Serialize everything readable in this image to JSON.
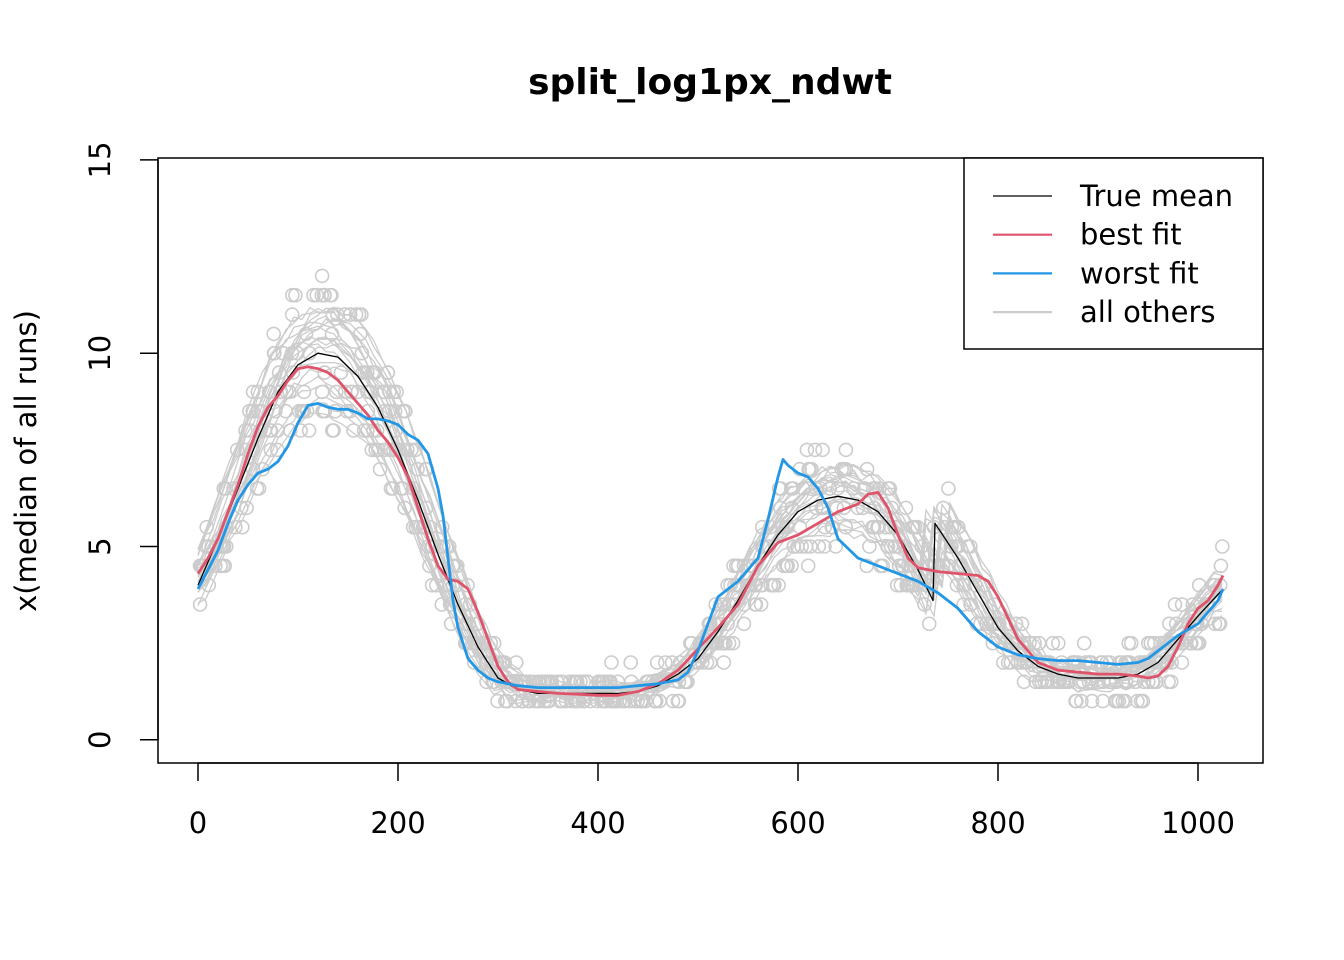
{
  "chart_data": {
    "type": "line",
    "title": "split_log1px_ndwt",
    "xlabel": "",
    "ylabel": "x(median of all runs)",
    "xlim": [
      -40,
      1065
    ],
    "ylim": [
      -0.6,
      15.05
    ],
    "x_ticks": [
      0,
      200,
      400,
      600,
      800,
      1000
    ],
    "y_ticks": [
      0,
      5,
      10,
      15
    ],
    "legend": {
      "position": "top-right",
      "entries": [
        {
          "label": "True mean",
          "color": "#000000"
        },
        {
          "label": "best fit",
          "color": "#DF536B"
        },
        {
          "label": "worst fit",
          "color": "#2297E6"
        },
        {
          "label": "all others",
          "color": "#CCCCCC"
        }
      ]
    },
    "series": [
      {
        "name": "True mean",
        "color": "#000000",
        "x": [
          0,
          20,
          40,
          60,
          80,
          100,
          120,
          140,
          160,
          180,
          200,
          220,
          240,
          260,
          280,
          300,
          320,
          340,
          360,
          380,
          400,
          420,
          440,
          460,
          480,
          500,
          520,
          540,
          560,
          580,
          600,
          620,
          640,
          660,
          680,
          700,
          720,
          735,
          737,
          760,
          780,
          800,
          820,
          840,
          860,
          880,
          900,
          920,
          940,
          960,
          980,
          1000,
          1025
        ],
        "y": [
          4.0,
          5.2,
          6.5,
          7.8,
          9.0,
          9.7,
          10.0,
          9.9,
          9.4,
          8.6,
          7.5,
          6.2,
          4.8,
          3.5,
          2.4,
          1.6,
          1.3,
          1.2,
          1.2,
          1.2,
          1.2,
          1.2,
          1.25,
          1.4,
          1.7,
          2.1,
          2.8,
          3.6,
          4.5,
          5.3,
          5.9,
          6.2,
          6.3,
          6.2,
          5.9,
          5.3,
          4.4,
          3.6,
          5.6,
          4.7,
          3.8,
          2.9,
          2.3,
          1.9,
          1.7,
          1.6,
          1.6,
          1.6,
          1.7,
          2.0,
          2.6,
          3.2,
          3.9
        ]
      },
      {
        "name": "best fit",
        "color": "#DF536B",
        "x": [
          0,
          10,
          20,
          30,
          40,
          50,
          60,
          70,
          80,
          90,
          100,
          110,
          120,
          130,
          140,
          150,
          160,
          170,
          180,
          190,
          200,
          210,
          220,
          230,
          240,
          250,
          260,
          270,
          280,
          290,
          300,
          310,
          320,
          340,
          360,
          380,
          400,
          420,
          440,
          460,
          480,
          500,
          520,
          540,
          560,
          580,
          600,
          620,
          640,
          660,
          670,
          680,
          690,
          700,
          710,
          720,
          740,
          760,
          780,
          790,
          800,
          820,
          840,
          860,
          880,
          900,
          920,
          940,
          950,
          960,
          970,
          980,
          990,
          1000,
          1010,
          1020,
          1025
        ],
        "y": [
          4.3,
          4.7,
          5.2,
          5.9,
          6.6,
          7.4,
          8.1,
          8.6,
          8.9,
          9.3,
          9.6,
          9.65,
          9.6,
          9.5,
          9.3,
          9.0,
          8.7,
          8.4,
          8.0,
          7.7,
          7.3,
          6.8,
          6.0,
          5.2,
          4.5,
          4.15,
          4.1,
          3.9,
          3.3,
          2.6,
          1.9,
          1.5,
          1.3,
          1.25,
          1.2,
          1.18,
          1.15,
          1.15,
          1.25,
          1.45,
          1.8,
          2.35,
          2.9,
          3.5,
          4.5,
          5.1,
          5.3,
          5.6,
          5.9,
          6.1,
          6.35,
          6.4,
          6.0,
          5.3,
          4.7,
          4.45,
          4.35,
          4.3,
          4.25,
          4.1,
          3.7,
          2.6,
          2.0,
          1.8,
          1.75,
          1.7,
          1.7,
          1.65,
          1.6,
          1.65,
          1.9,
          2.4,
          3.0,
          3.4,
          3.6,
          4.0,
          4.25
        ]
      },
      {
        "name": "worst fit",
        "color": "#2297E6",
        "x": [
          0,
          10,
          20,
          30,
          40,
          50,
          60,
          70,
          80,
          90,
          100,
          110,
          120,
          130,
          140,
          150,
          160,
          170,
          180,
          190,
          200,
          210,
          220,
          230,
          240,
          245,
          250,
          255,
          260,
          270,
          280,
          290,
          300,
          320,
          340,
          360,
          380,
          400,
          420,
          440,
          460,
          480,
          490,
          500,
          510,
          520,
          540,
          560,
          570,
          580,
          585,
          590,
          600,
          610,
          620,
          630,
          640,
          660,
          680,
          700,
          720,
          740,
          760,
          780,
          800,
          820,
          840,
          860,
          880,
          900,
          920,
          940,
          950,
          960,
          970,
          980,
          1000,
          1010,
          1020,
          1025
        ],
        "y": [
          3.9,
          4.4,
          4.9,
          5.6,
          6.2,
          6.6,
          6.9,
          7.0,
          7.2,
          7.6,
          8.2,
          8.65,
          8.7,
          8.6,
          8.55,
          8.55,
          8.45,
          8.3,
          8.3,
          8.25,
          8.15,
          7.9,
          7.75,
          7.4,
          6.5,
          5.8,
          4.7,
          3.6,
          2.9,
          2.1,
          1.8,
          1.6,
          1.5,
          1.4,
          1.35,
          1.35,
          1.35,
          1.35,
          1.35,
          1.4,
          1.45,
          1.55,
          1.75,
          2.3,
          3.0,
          3.7,
          4.1,
          4.7,
          5.7,
          6.8,
          7.25,
          7.1,
          6.9,
          6.8,
          6.5,
          6.0,
          5.2,
          4.7,
          4.5,
          4.3,
          4.1,
          3.8,
          3.4,
          2.8,
          2.4,
          2.2,
          2.1,
          2.05,
          2.05,
          2.0,
          1.95,
          2.0,
          2.1,
          2.3,
          2.5,
          2.7,
          3.0,
          3.3,
          3.6,
          3.9
        ]
      }
    ]
  }
}
